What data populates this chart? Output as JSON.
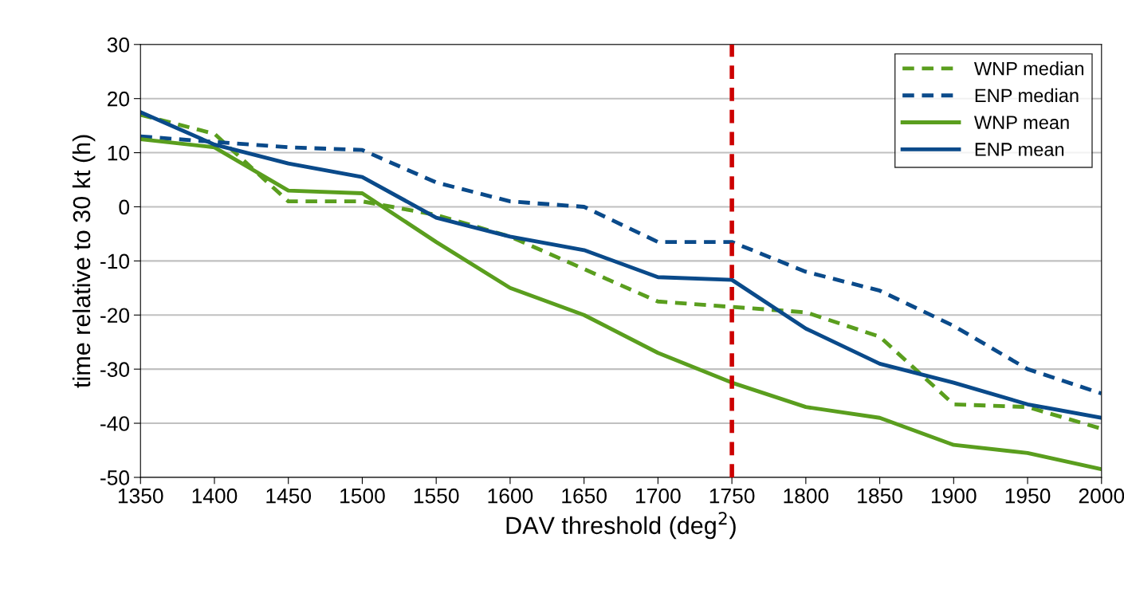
{
  "chart_data": {
    "type": "line",
    "xlabel": "DAV threshold (deg$^{2}$)",
    "ylabel": "time relative to 30 kt (h)",
    "x": [
      1350,
      1400,
      1450,
      1500,
      1550,
      1600,
      1650,
      1700,
      1750,
      1800,
      1850,
      1900,
      1950,
      2000
    ],
    "series": [
      {
        "name": "WNP median",
        "color": "#5a9e1e",
        "line_style": "dashed",
        "values": [
          17,
          13.5,
          1,
          1,
          -1.5,
          -5.5,
          -11.5,
          -17.5,
          -18.5,
          -19.5,
          -24,
          -36.5,
          -37,
          -41
        ]
      },
      {
        "name": "ENP median",
        "color": "#0a4a8a",
        "line_style": "dashed",
        "values": [
          13,
          12,
          11,
          10.5,
          4.5,
          1,
          0,
          -6.5,
          -6.5,
          -12,
          -15.5,
          -22,
          -30,
          -34.5
        ]
      },
      {
        "name": "WNP mean",
        "color": "#5a9e1e",
        "line_style": "solid",
        "values": [
          12.5,
          11,
          3,
          2.5,
          -6.5,
          -15,
          -20,
          -27,
          -32.5,
          -37,
          -39,
          -44,
          -45.5,
          -48.5
        ]
      },
      {
        "name": "ENP mean",
        "color": "#0a4a8a",
        "line_style": "solid",
        "values": [
          17.5,
          11.5,
          8,
          5.5,
          -2,
          -5.5,
          -8,
          -13,
          -13.5,
          -22.5,
          -29,
          -32.5,
          -36.5,
          -39
        ]
      }
    ],
    "xlim": [
      1350,
      2000
    ],
    "xticks": [
      1350,
      1400,
      1450,
      1500,
      1550,
      1600,
      1650,
      1700,
      1750,
      1800,
      1850,
      1900,
      1950,
      2000
    ],
    "ylim": [
      -50,
      30
    ],
    "yticks": [
      -50,
      -40,
      -30,
      -20,
      -10,
      0,
      10,
      20,
      30
    ],
    "ref_lines": [
      {
        "axis": "x",
        "value": 1750,
        "label": null,
        "color": "#cc0000",
        "line_style": "dashed"
      }
    ],
    "grid": "y",
    "legend": "top right",
    "marker": "none"
  }
}
